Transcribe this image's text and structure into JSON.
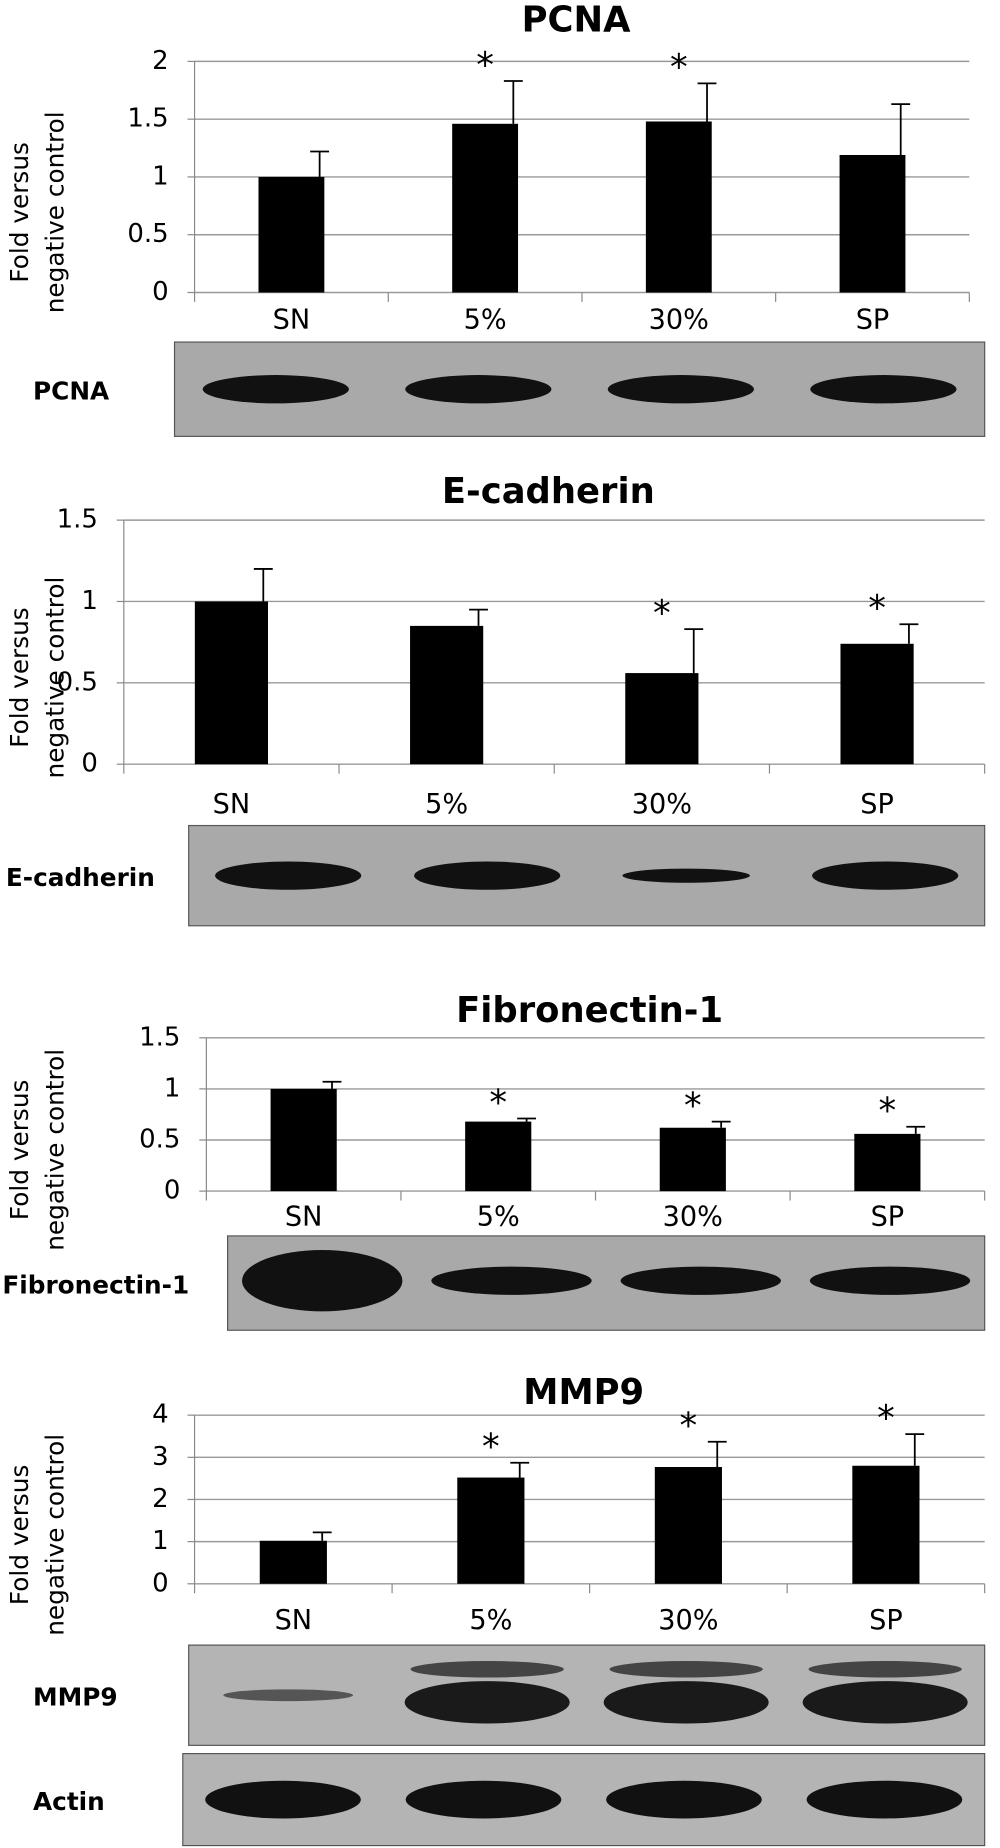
{
  "chart_data": [
    {
      "type": "bar",
      "title": "PCNA",
      "ylabel": [
        "Fold versus",
        "negative control"
      ],
      "categories": [
        "SN",
        "5%",
        "30%",
        "SP"
      ],
      "values": [
        1,
        1.46,
        1.48,
        1.19
      ],
      "errors": [
        0.22,
        0.37,
        0.33,
        0.44
      ],
      "annotations": [
        null,
        "*",
        "*",
        null
      ],
      "color": "#000000",
      "ylim": [
        0,
        2
      ],
      "yticks": [
        0,
        0.5,
        1,
        1.5,
        2
      ],
      "grid": true,
      "blot_labels": [
        "PCNA"
      ]
    },
    {
      "type": "bar",
      "title": "E-cadherin",
      "ylabel": [
        "Fold versus",
        "negative control"
      ],
      "categories": [
        "SN",
        "5%",
        "30%",
        "SP"
      ],
      "values": [
        1,
        0.85,
        0.56,
        0.74
      ],
      "errors": [
        0.2,
        0.1,
        0.27,
        0.12
      ],
      "annotations": [
        null,
        null,
        "*",
        "*"
      ],
      "color": "#000000",
      "ylim": [
        0,
        1.5
      ],
      "yticks": [
        0,
        0.5,
        1,
        1.5
      ],
      "grid": true,
      "blot_labels": [
        "E-cadherin"
      ]
    },
    {
      "type": "bar",
      "title": "Fibronectin-1",
      "ylabel": [
        "Fold versus",
        "negative control"
      ],
      "categories": [
        "SN",
        "5%",
        "30%",
        "SP"
      ],
      "values": [
        1,
        0.68,
        0.62,
        0.56
      ],
      "errors": [
        0.07,
        0.03,
        0.06,
        0.07
      ],
      "annotations": [
        null,
        "*",
        "*",
        "*"
      ],
      "color": "#000000",
      "ylim": [
        0,
        1.5
      ],
      "yticks": [
        0,
        0.5,
        1,
        1.5
      ],
      "grid": true,
      "blot_labels": [
        "Fibronectin-1"
      ]
    },
    {
      "type": "bar",
      "title": "MMP9",
      "ylabel": [
        "Fold versus",
        "negative control"
      ],
      "categories": [
        "SN",
        "5%",
        "30%",
        "SP"
      ],
      "values": [
        1.02,
        2.52,
        2.77,
        2.8
      ],
      "errors": [
        0.2,
        0.35,
        0.6,
        0.75
      ],
      "annotations": [
        null,
        "*",
        "*",
        "*"
      ],
      "color": "#000000",
      "ylim": [
        0,
        4
      ],
      "yticks": [
        0,
        1,
        2,
        3,
        4
      ],
      "grid": true,
      "blot_labels": [
        "MMP9",
        "Actin"
      ]
    }
  ]
}
